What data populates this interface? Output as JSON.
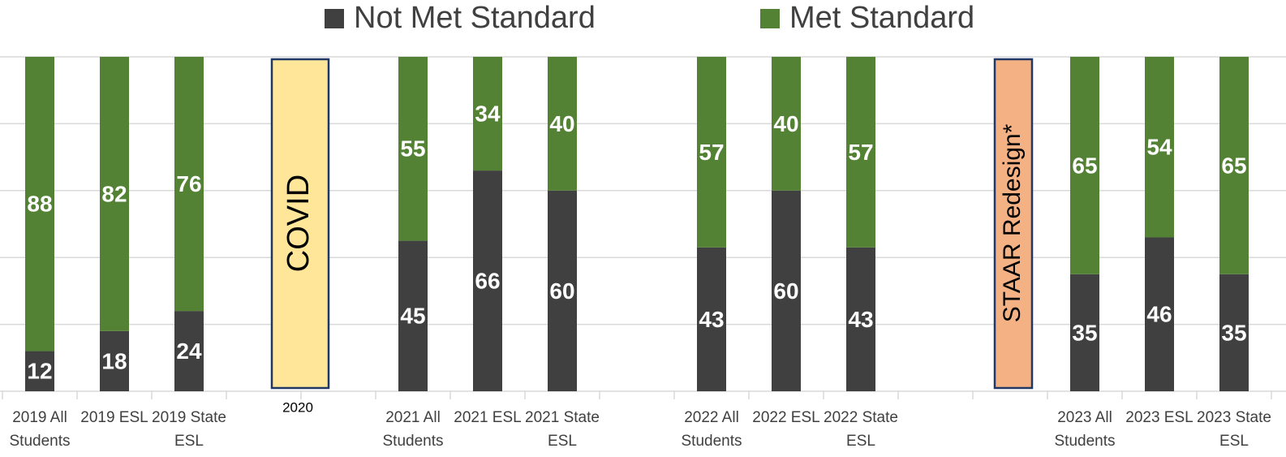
{
  "chart_data": {
    "type": "stacked_bar",
    "categories": [
      "2019 All Students",
      "2019 ESL",
      "2019 State ESL",
      null,
      null,
      "2021 All Students",
      "2021 ESL",
      "2021 State ESL",
      null,
      "2022 All Students",
      "2022 ESL",
      "2022 State ESL",
      null,
      null,
      "2023 All Students",
      "2023 ESL",
      "2023 State ESL"
    ],
    "series": [
      {
        "name": "Not Met Standard",
        "color": "#404040",
        "values": [
          12,
          18,
          24,
          null,
          null,
          45,
          66,
          60,
          null,
          43,
          60,
          43,
          null,
          null,
          35,
          46,
          35
        ]
      },
      {
        "name": "Met Standard",
        "color": "#548235",
        "values": [
          88,
          82,
          76,
          null,
          null,
          55,
          34,
          40,
          null,
          57,
          40,
          57,
          null,
          null,
          65,
          54,
          65
        ]
      }
    ],
    "ylim": [
      0,
      100
    ],
    "yticks": [
      0,
      20,
      40,
      60,
      80,
      100
    ],
    "grid": true,
    "legend": "top",
    "annotations": [
      {
        "text": "COVID",
        "color": "#FFE699"
      },
      {
        "text": "2020"
      },
      {
        "text": "STAAR Redesign*",
        "color": "#F4B183"
      }
    ]
  }
}
